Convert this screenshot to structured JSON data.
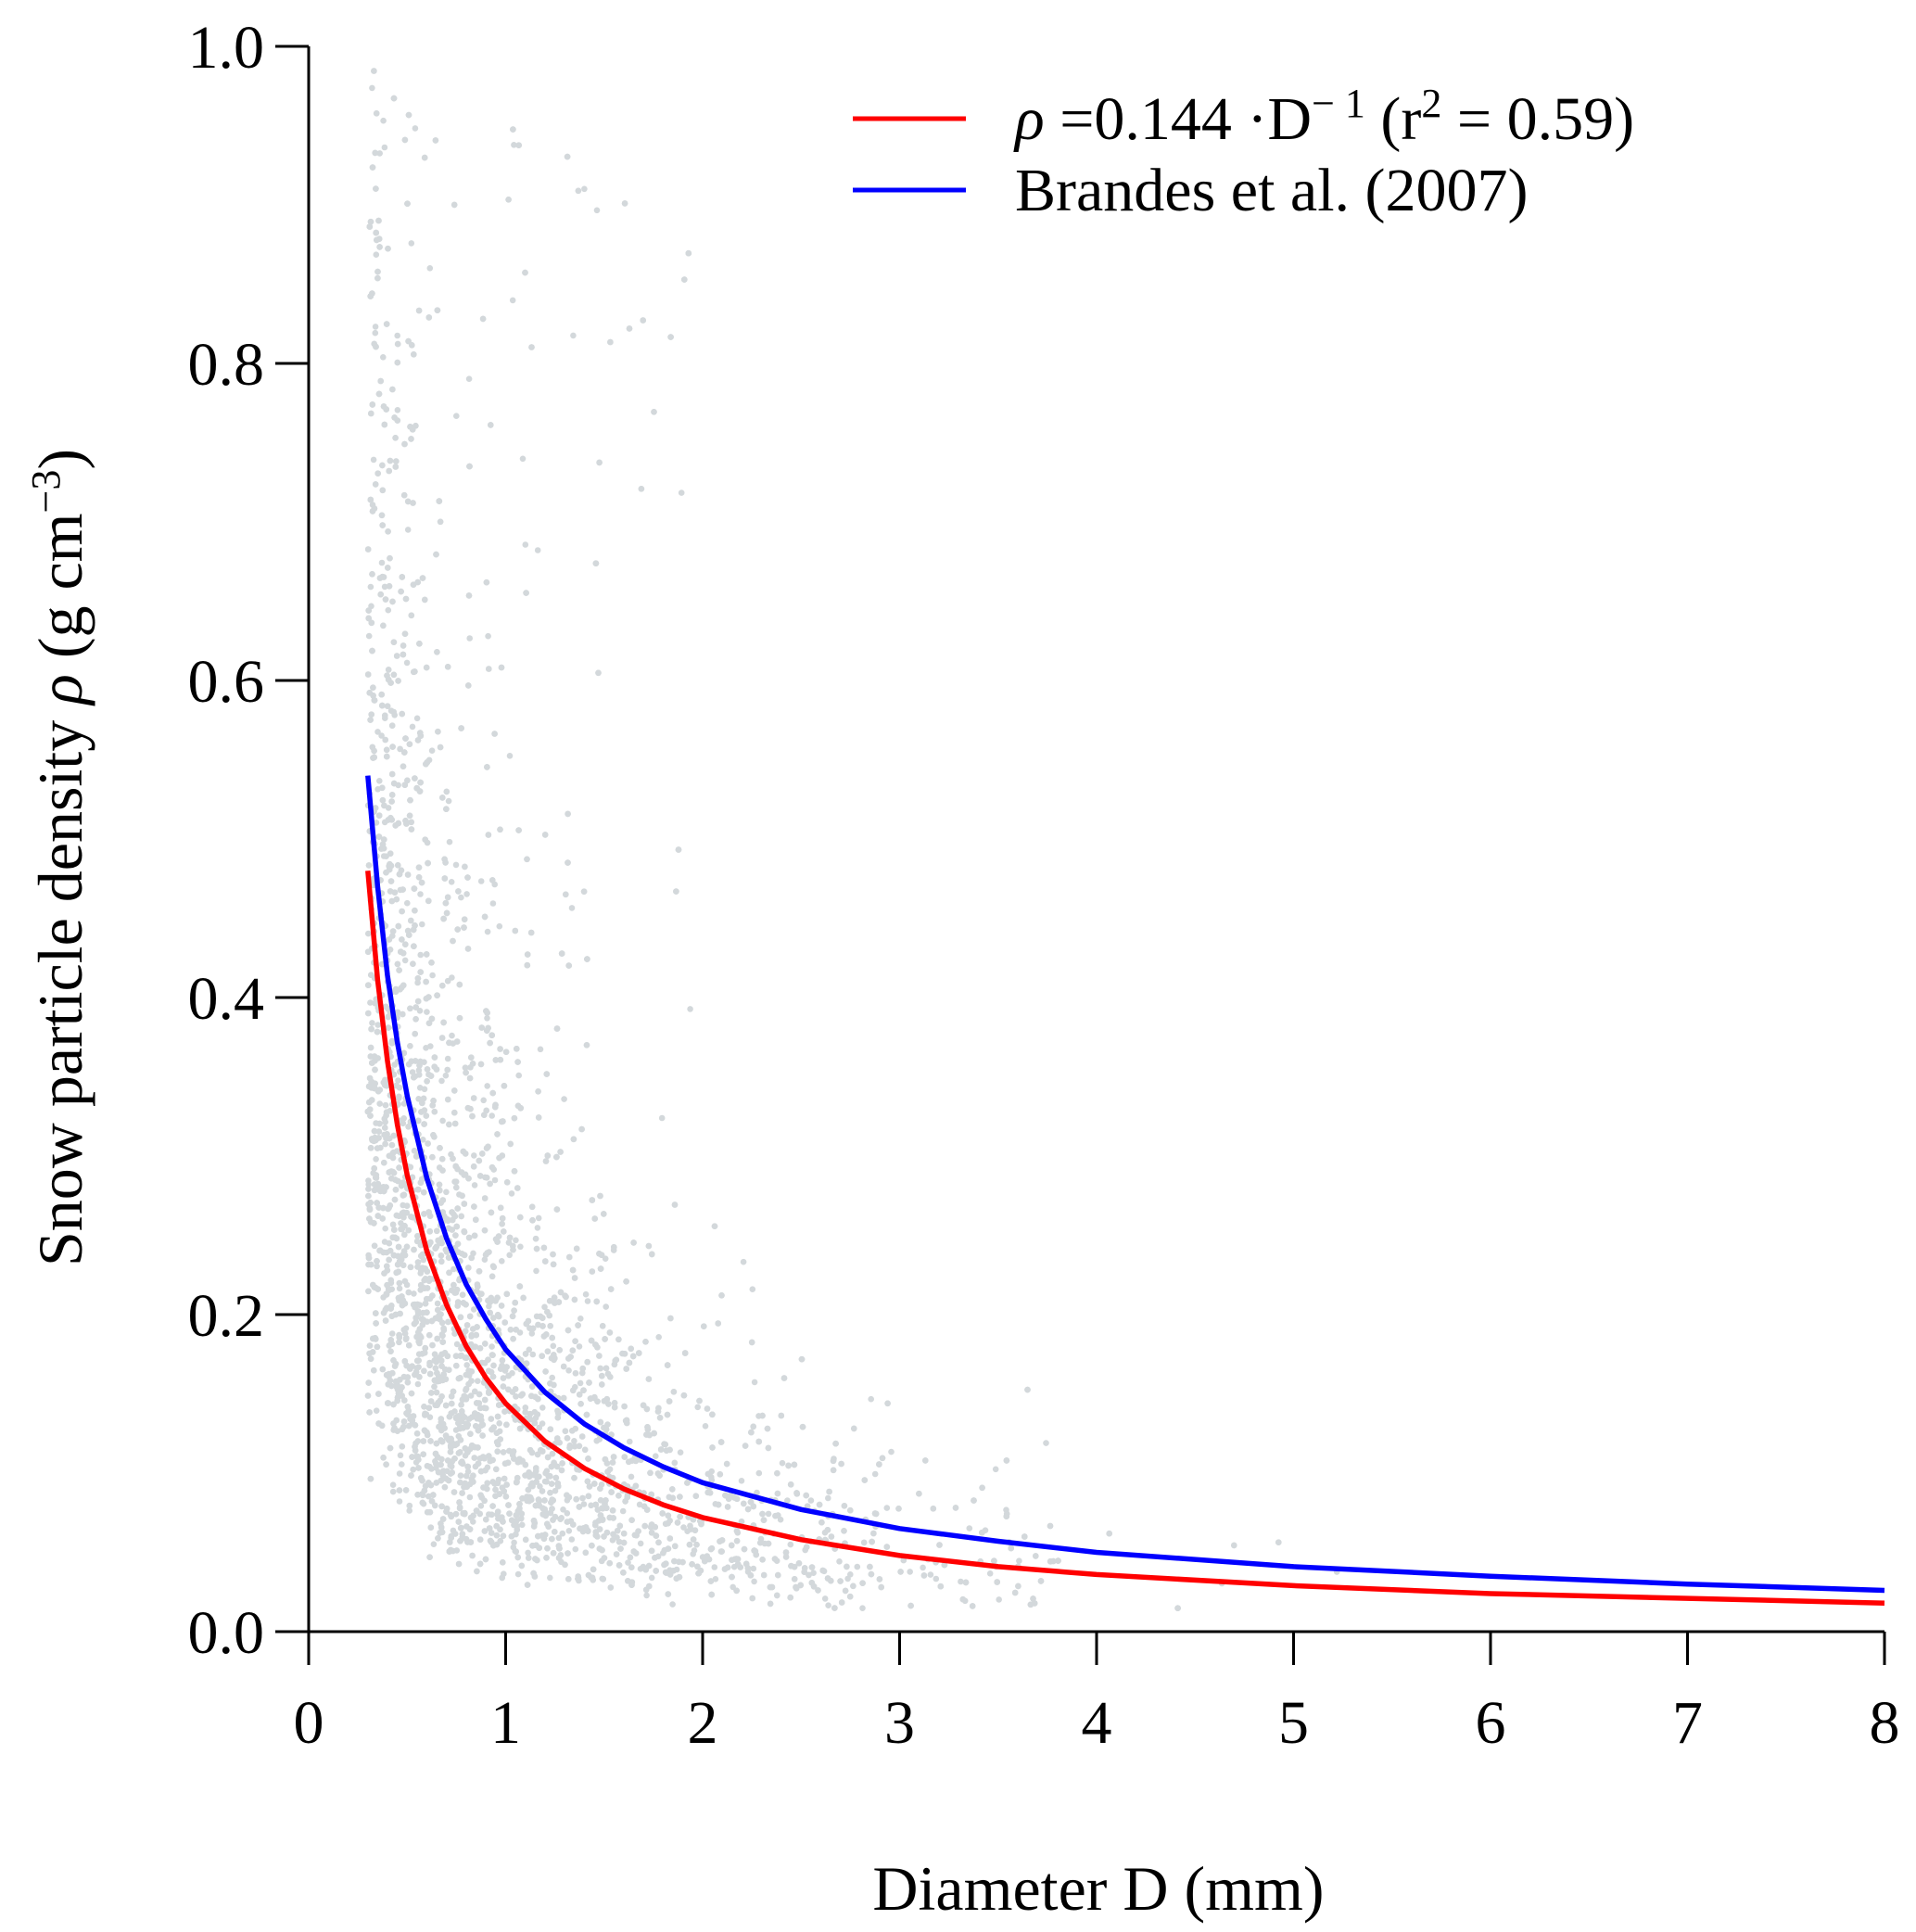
{
  "chart_data": {
    "type": "scatter",
    "title": "",
    "xlabel": "Diameter D (mm)",
    "ylabel": "Snow particle density ρ (g cm⁻³)",
    "ylabel_parts": {
      "main": "Snow particle density ",
      "symbol": "ρ",
      "unit_open": " (g cm",
      "unit_sup": "−3",
      "unit_close": ")"
    },
    "xlim": [
      0,
      8
    ],
    "ylim": [
      0,
      1
    ],
    "x_ticks": [
      "0",
      "1",
      "2",
      "3",
      "4",
      "5",
      "6",
      "7",
      "8"
    ],
    "y_ticks": [
      "0.0",
      "0.2",
      "0.4",
      "0.6",
      "0.8",
      "1.0"
    ],
    "grid": false,
    "legend_position": "top-right",
    "scatter_color": "#d3d8db",
    "scatter_point_count": 5200,
    "series": [
      {
        "legend_parts": {
          "sym": "ρ",
          "pre": " =0.144 ·D",
          "sup1": "− 1",
          "mid": " (r",
          "sup2": "2",
          "post": " = 0.59)"
        },
        "color": "#ff0000",
        "x": [
          0.3,
          0.35,
          0.4,
          0.45,
          0.5,
          0.6,
          0.7,
          0.8,
          0.9,
          1.0,
          1.2,
          1.4,
          1.6,
          1.8,
          2.0,
          2.5,
          3.0,
          3.5,
          4.0,
          5.0,
          6.0,
          7.0,
          8.0
        ],
        "y": [
          0.48,
          0.411,
          0.36,
          0.32,
          0.288,
          0.24,
          0.206,
          0.18,
          0.16,
          0.144,
          0.12,
          0.103,
          0.09,
          0.08,
          0.072,
          0.058,
          0.048,
          0.041,
          0.036,
          0.029,
          0.024,
          0.021,
          0.018
        ]
      },
      {
        "name": "Brandes et al. (2007)",
        "color": "#0000ff",
        "x": [
          0.3,
          0.35,
          0.4,
          0.45,
          0.5,
          0.6,
          0.7,
          0.8,
          0.9,
          1.0,
          1.2,
          1.4,
          1.6,
          1.8,
          2.0,
          2.5,
          3.0,
          3.5,
          4.0,
          5.0,
          6.0,
          7.0,
          8.0
        ],
        "y": [
          0.54,
          0.47,
          0.414,
          0.372,
          0.338,
          0.286,
          0.248,
          0.219,
          0.197,
          0.178,
          0.151,
          0.131,
          0.116,
          0.104,
          0.094,
          0.077,
          0.065,
          0.057,
          0.05,
          0.041,
          0.035,
          0.03,
          0.026
        ]
      }
    ]
  }
}
